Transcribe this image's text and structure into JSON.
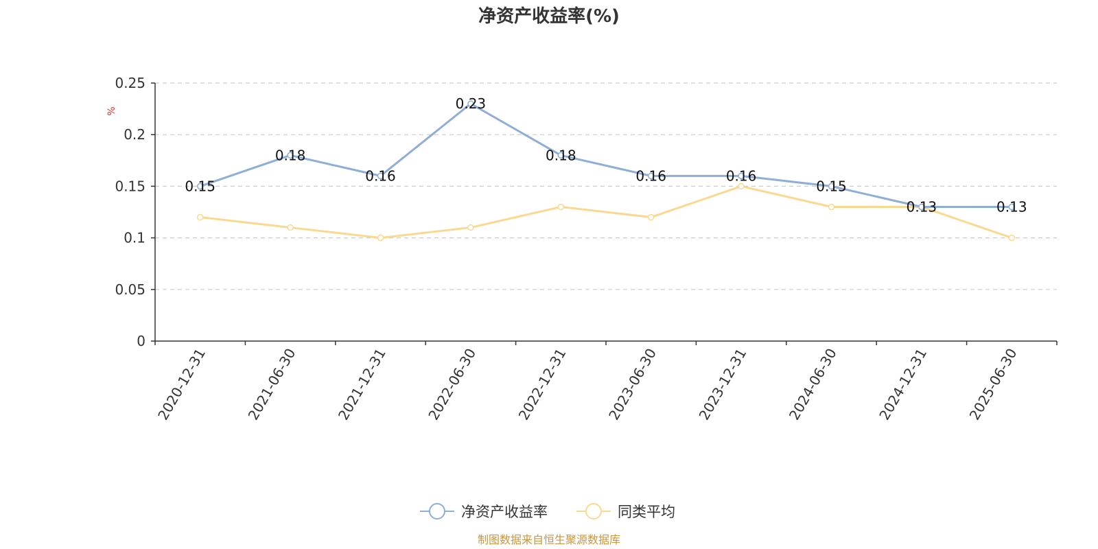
{
  "colors": {
    "series_primary": "#8eaed6",
    "series_secondary": "#fbd88f",
    "unit": "#e03131",
    "source": "#c8963e",
    "grid": "#cccccc",
    "axis": "#333333"
  },
  "chart_data": {
    "type": "line",
    "title": "净资产收益率(%)",
    "ylabel": "%",
    "xlabel": "",
    "ylim": [
      0,
      0.25
    ],
    "yticks": [
      "0",
      "0.05",
      "0.1",
      "0.15",
      "0.2",
      "0.25"
    ],
    "grid": true,
    "legend_position": "bottom-center",
    "categories": [
      "2020-12-31",
      "2021-06-30",
      "2021-12-31",
      "2022-06-30",
      "2022-12-31",
      "2023-06-30",
      "2023-12-31",
      "2024-06-30",
      "2024-12-31",
      "2025-06-30"
    ],
    "series": [
      {
        "name": "净资产收益率",
        "values": [
          0.15,
          0.18,
          0.16,
          0.23,
          0.18,
          0.16,
          0.16,
          0.15,
          0.13,
          0.13
        ],
        "labels": [
          "0.15",
          "0.18",
          "0.16",
          "0.23",
          "0.18",
          "0.16",
          "0.16",
          "0.15",
          "0.13",
          "0.13"
        ]
      },
      {
        "name": "同类平均",
        "values": [
          0.12,
          0.11,
          0.1,
          0.11,
          0.13,
          0.12,
          0.15,
          0.13,
          0.13,
          0.1
        ]
      }
    ],
    "source": "制图数据来自恒生聚源数据库"
  }
}
